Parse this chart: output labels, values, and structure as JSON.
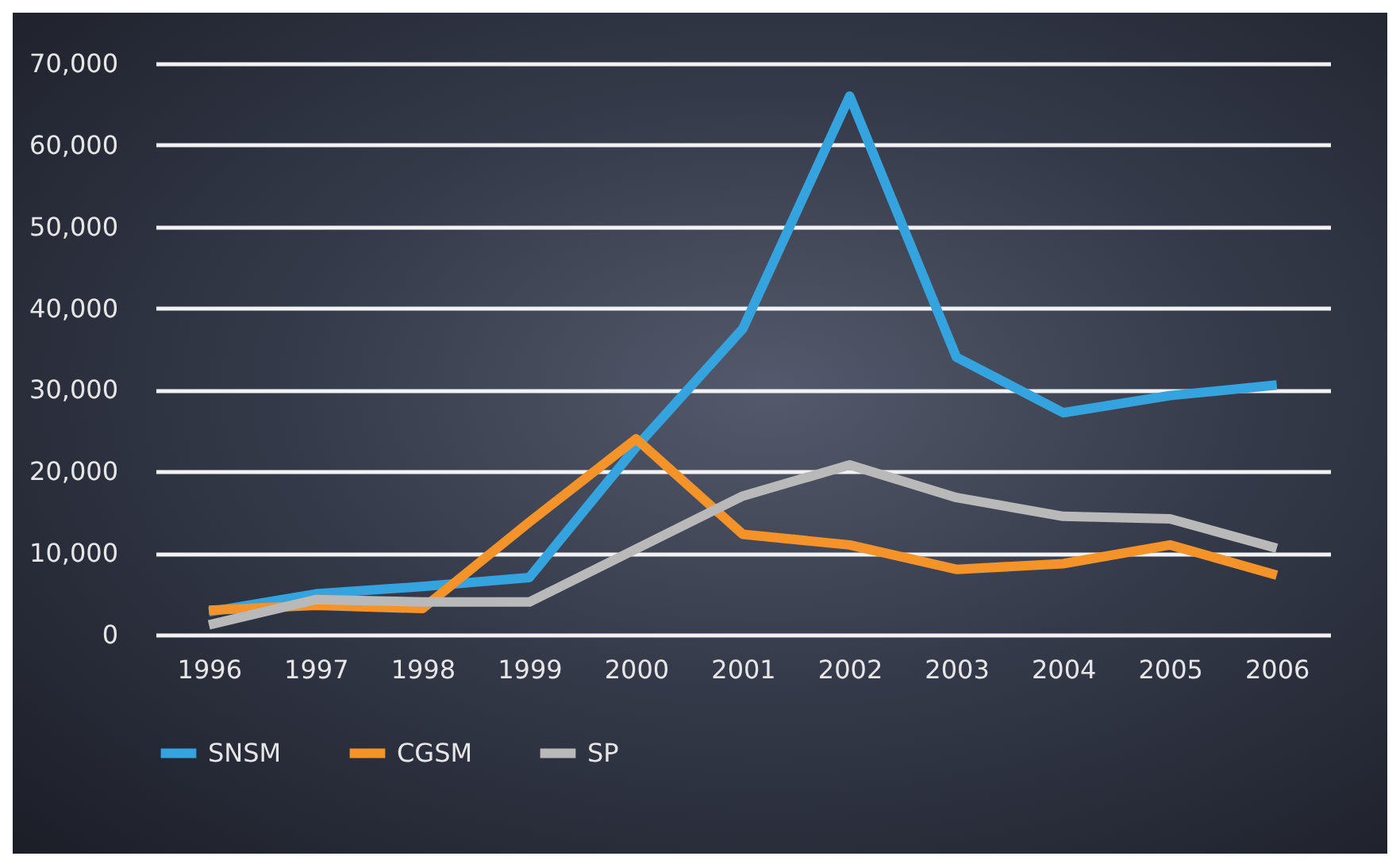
{
  "chart_data": {
    "type": "line",
    "categories": [
      "1996",
      "1997",
      "1998",
      "1999",
      "2000",
      "2001",
      "2002",
      "2003",
      "2004",
      "2005",
      "2006"
    ],
    "series": [
      {
        "name": "SNSM",
        "color": "#35a3dd",
        "values": [
          2800,
          5000,
          5900,
          7000,
          23000,
          37500,
          66000,
          34000,
          27200,
          29300,
          30600
        ]
      },
      {
        "name": "CGSM",
        "color": "#f39329",
        "values": [
          3000,
          3600,
          3200,
          13800,
          24000,
          12300,
          11000,
          8000,
          8700,
          11000,
          7300
        ]
      },
      {
        "name": "SP",
        "color": "#b9b9b9",
        "values": [
          1200,
          4300,
          4000,
          4000,
          10500,
          17000,
          20800,
          16800,
          14500,
          14200,
          10600
        ]
      }
    ],
    "ylim": [
      0,
      70000
    ],
    "yticks": [
      0,
      {
        "value": 10000,
        "label": "10,000"
      },
      {
        "value": 20000,
        "label": "20,000"
      },
      {
        "value": 30000,
        "label": "30,000"
      },
      {
        "value": 40000,
        "label": "40,000"
      },
      {
        "value": 50000,
        "label": "50,000"
      },
      {
        "value": 60000,
        "label": "60,000"
      },
      {
        "value": 70000,
        "label": "70,000"
      }
    ],
    "grid": "y",
    "legend": "bottom",
    "marker": "none",
    "line_style": "solid"
  }
}
